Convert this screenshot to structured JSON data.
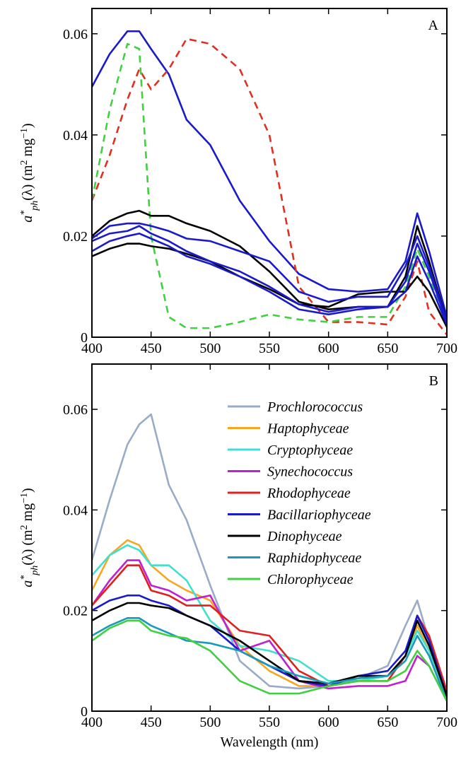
{
  "chart_data": [
    {
      "type": "line",
      "panel_label": "A",
      "ylabel": [
        "a",
        "*",
        "ph",
        "(λ) (m",
        "2",
        " mg",
        "−1",
        ")"
      ],
      "x": [
        400,
        415,
        430,
        440,
        450,
        465,
        480,
        500,
        525,
        550,
        575,
        600,
        625,
        650,
        665,
        675,
        685,
        700
      ],
      "xlim": [
        400,
        700
      ],
      "xticks": [
        400,
        450,
        500,
        550,
        600,
        650,
        700
      ],
      "ylim": [
        0,
        0.065
      ],
      "yticks": [
        0,
        0.02,
        0.04,
        0.06
      ],
      "series": [
        {
          "color": "#1a1acc",
          "dashed": false,
          "values": [
            0.0495,
            0.056,
            0.0605,
            0.0605,
            0.057,
            0.052,
            0.043,
            0.038,
            0.027,
            0.019,
            0.0125,
            0.0095,
            0.009,
            0.0095,
            0.015,
            0.0245,
            0.017,
            0.004
          ]
        },
        {
          "color": "#e03020",
          "dashed": true,
          "values": [
            0.027,
            0.036,
            0.047,
            0.053,
            0.049,
            0.053,
            0.059,
            0.058,
            0.053,
            0.04,
            0.01,
            0.003,
            0.003,
            0.0025,
            0.008,
            0.015,
            0.005,
            0.0005
          ]
        },
        {
          "color": "#40d040",
          "dashed": true,
          "values": [
            0.027,
            0.045,
            0.058,
            0.057,
            0.02,
            0.004,
            0.0018,
            0.0018,
            0.003,
            0.0045,
            0.0035,
            0.003,
            0.004,
            0.004,
            0.01,
            0.0175,
            0.012,
            0.002
          ]
        },
        {
          "color": "#000000",
          "dashed": false,
          "values": [
            0.02,
            0.023,
            0.0245,
            0.025,
            0.024,
            0.024,
            0.0225,
            0.021,
            0.018,
            0.013,
            0.007,
            0.0055,
            0.006,
            0.006,
            0.012,
            0.022,
            0.015,
            0.003
          ]
        },
        {
          "color": "#000000",
          "dashed": false,
          "values": [
            0.016,
            0.0175,
            0.0185,
            0.0185,
            0.018,
            0.0175,
            0.0165,
            0.015,
            0.012,
            0.0095,
            0.0065,
            0.006,
            0.0085,
            0.009,
            0.009,
            0.012,
            0.009,
            0.002
          ]
        },
        {
          "color": "#1a1acc",
          "dashed": false,
          "values": [
            0.0195,
            0.022,
            0.0225,
            0.0225,
            0.022,
            0.021,
            0.0195,
            0.019,
            0.017,
            0.015,
            0.009,
            0.007,
            0.008,
            0.008,
            0.014,
            0.02,
            0.014,
            0.003
          ]
        },
        {
          "color": "#1a1acc",
          "dashed": false,
          "values": [
            0.019,
            0.0205,
            0.021,
            0.022,
            0.0205,
            0.019,
            0.017,
            0.015,
            0.013,
            0.01,
            0.0065,
            0.005,
            0.006,
            0.006,
            0.011,
            0.0185,
            0.013,
            0.003
          ]
        },
        {
          "color": "#1a1acc",
          "dashed": false,
          "values": [
            0.017,
            0.019,
            0.02,
            0.0205,
            0.0195,
            0.018,
            0.016,
            0.0145,
            0.012,
            0.009,
            0.0055,
            0.0045,
            0.0055,
            0.006,
            0.009,
            0.016,
            0.011,
            0.0025
          ]
        }
      ]
    },
    {
      "type": "line",
      "panel_label": "B",
      "xlabel": "Wavelength (nm)",
      "ylabel": [
        "a",
        "*",
        "ph",
        "(λ) (m",
        "2",
        " mg",
        "−1",
        ")"
      ],
      "x": [
        400,
        415,
        430,
        440,
        450,
        465,
        480,
        500,
        525,
        550,
        575,
        600,
        625,
        650,
        665,
        675,
        685,
        700
      ],
      "xlim": [
        400,
        700
      ],
      "xticks": [
        400,
        450,
        500,
        550,
        600,
        650,
        700
      ],
      "ylim": [
        0,
        0.069
      ],
      "yticks": [
        0,
        0.02,
        0.04,
        0.06
      ],
      "series": [
        {
          "name": "Prochlorococcus",
          "color": "#9aabc8",
          "values": [
            0.03,
            0.042,
            0.053,
            0.057,
            0.059,
            0.045,
            0.038,
            0.025,
            0.01,
            0.005,
            0.0045,
            0.005,
            0.0065,
            0.009,
            0.017,
            0.022,
            0.014,
            0.003
          ]
        },
        {
          "name": "Haptophyceae",
          "color": "#f5a623",
          "values": [
            0.024,
            0.031,
            0.034,
            0.033,
            0.029,
            0.026,
            0.024,
            0.022,
            0.013,
            0.008,
            0.005,
            0.005,
            0.006,
            0.007,
            0.011,
            0.017,
            0.012,
            0.003
          ]
        },
        {
          "name": "Cryptophyceae",
          "color": "#40e0d0",
          "values": [
            0.027,
            0.031,
            0.033,
            0.032,
            0.029,
            0.029,
            0.026,
            0.018,
            0.013,
            0.012,
            0.01,
            0.006,
            0.006,
            0.007,
            0.011,
            0.016,
            0.012,
            0.003
          ]
        },
        {
          "name": "Synechococcus",
          "color": "#c020d0",
          "values": [
            0.021,
            0.026,
            0.03,
            0.03,
            0.025,
            0.024,
            0.022,
            0.023,
            0.012,
            0.014,
            0.006,
            0.0045,
            0.005,
            0.005,
            0.006,
            0.011,
            0.009,
            0.002
          ]
        },
        {
          "name": "Rhodophyceae",
          "color": "#e02020",
          "values": [
            0.021,
            0.025,
            0.029,
            0.029,
            0.024,
            0.023,
            0.021,
            0.021,
            0.016,
            0.015,
            0.008,
            0.005,
            0.006,
            0.006,
            0.011,
            0.019,
            0.015,
            0.004
          ]
        },
        {
          "name": "Bacillariophyceae",
          "color": "#1a1acc",
          "values": [
            0.02,
            0.022,
            0.023,
            0.023,
            0.022,
            0.021,
            0.019,
            0.017,
            0.012,
            0.009,
            0.006,
            0.005,
            0.007,
            0.008,
            0.012,
            0.019,
            0.014,
            0.003
          ]
        },
        {
          "name": "Dinophyceae",
          "color": "#000000",
          "values": [
            0.018,
            0.02,
            0.0215,
            0.0215,
            0.021,
            0.0205,
            0.019,
            0.017,
            0.014,
            0.01,
            0.006,
            0.0055,
            0.007,
            0.007,
            0.011,
            0.018,
            0.013,
            0.003
          ]
        },
        {
          "name": "Raphidophyceae",
          "color": "#1a9ab8",
          "values": [
            0.015,
            0.017,
            0.0185,
            0.0185,
            0.017,
            0.0155,
            0.014,
            0.0135,
            0.012,
            0.009,
            0.007,
            0.0055,
            0.0065,
            0.007,
            0.01,
            0.015,
            0.011,
            0.002
          ]
        },
        {
          "name": "Chlorophyceae",
          "color": "#40d040",
          "values": [
            0.014,
            0.0165,
            0.018,
            0.018,
            0.016,
            0.015,
            0.0145,
            0.012,
            0.006,
            0.0035,
            0.0035,
            0.005,
            0.006,
            0.006,
            0.008,
            0.012,
            0.009,
            0.002
          ]
        }
      ]
    }
  ]
}
